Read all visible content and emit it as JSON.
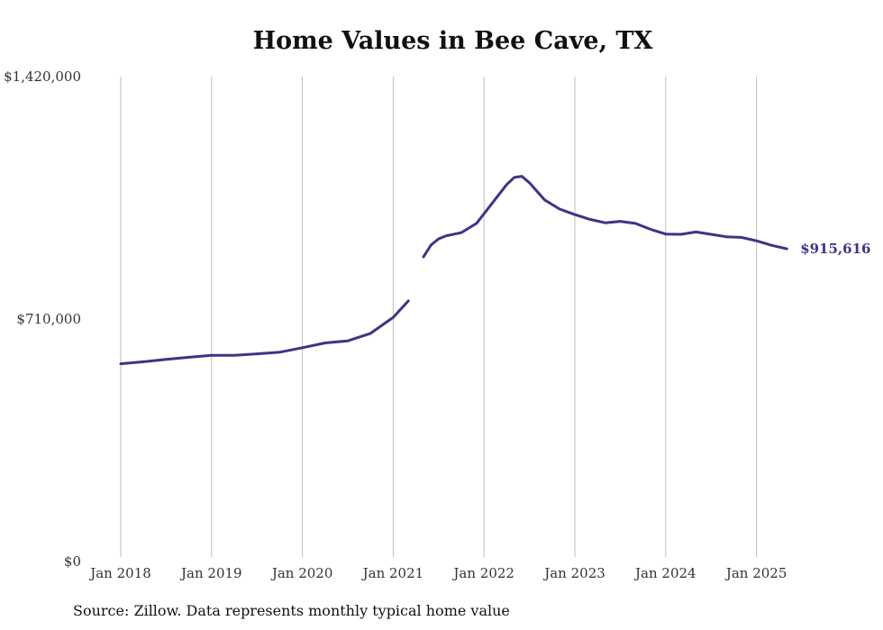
{
  "chart_data": {
    "type": "line",
    "title": "Home Values in Bee Cave, TX",
    "source": "Source: Zillow. Data represents monthly typical home value",
    "line_color": "#3d3488",
    "grid_color": "#bdbdbd",
    "ylim": [
      0,
      1420000
    ],
    "y_ticks": [
      0,
      710000,
      1420000
    ],
    "y_tick_labels": [
      "$0",
      "$710,000",
      "$1,420,000"
    ],
    "x_ticks": [
      "2018-01",
      "2019-01",
      "2020-01",
      "2021-01",
      "2022-01",
      "2023-01",
      "2024-01",
      "2025-01"
    ],
    "x_tick_labels": [
      "Jan 2018",
      "Jan 2019",
      "Jan 2020",
      "Jan 2021",
      "Jan 2022",
      "Jan 2023",
      "Jan 2024",
      "Jan 2025"
    ],
    "end_label": "$915,616",
    "series": [
      {
        "segments": [
          [
            {
              "x": "2018-01",
              "y": 579000
            },
            {
              "x": "2018-04",
              "y": 585000
            },
            {
              "x": "2018-07",
              "y": 592000
            },
            {
              "x": "2018-10",
              "y": 598000
            },
            {
              "x": "2019-01",
              "y": 604000
            },
            {
              "x": "2019-04",
              "y": 604000
            },
            {
              "x": "2019-07",
              "y": 608000
            },
            {
              "x": "2019-10",
              "y": 613000
            },
            {
              "x": "2020-01",
              "y": 626000
            },
            {
              "x": "2020-04",
              "y": 640000
            },
            {
              "x": "2020-07",
              "y": 646000
            },
            {
              "x": "2020-10",
              "y": 668000
            },
            {
              "x": "2021-01",
              "y": 715000
            },
            {
              "x": "2021-03",
              "y": 763000
            }
          ],
          [
            {
              "x": "2021-05",
              "y": 892000
            },
            {
              "x": "2021-06",
              "y": 927000
            },
            {
              "x": "2021-07",
              "y": 945000
            },
            {
              "x": "2021-08",
              "y": 954000
            },
            {
              "x": "2021-10",
              "y": 963000
            },
            {
              "x": "2021-12",
              "y": 990000
            },
            {
              "x": "2022-02",
              "y": 1047000
            },
            {
              "x": "2022-04",
              "y": 1104000
            },
            {
              "x": "2022-05",
              "y": 1125000
            },
            {
              "x": "2022-06",
              "y": 1128000
            },
            {
              "x": "2022-07",
              "y": 1109000
            },
            {
              "x": "2022-09",
              "y": 1059000
            },
            {
              "x": "2022-11",
              "y": 1032000
            },
            {
              "x": "2023-01",
              "y": 1016000
            },
            {
              "x": "2023-03",
              "y": 1002000
            },
            {
              "x": "2023-05",
              "y": 992000
            },
            {
              "x": "2023-07",
              "y": 996000
            },
            {
              "x": "2023-09",
              "y": 990000
            },
            {
              "x": "2023-11",
              "y": 973000
            },
            {
              "x": "2024-01",
              "y": 959000
            },
            {
              "x": "2024-03",
              "y": 958000
            },
            {
              "x": "2024-05",
              "y": 965000
            },
            {
              "x": "2024-07",
              "y": 958000
            },
            {
              "x": "2024-09",
              "y": 951000
            },
            {
              "x": "2024-11",
              "y": 949000
            },
            {
              "x": "2025-01",
              "y": 939000
            },
            {
              "x": "2025-03",
              "y": 926000
            },
            {
              "x": "2025-05",
              "y": 915616
            }
          ]
        ]
      }
    ]
  }
}
